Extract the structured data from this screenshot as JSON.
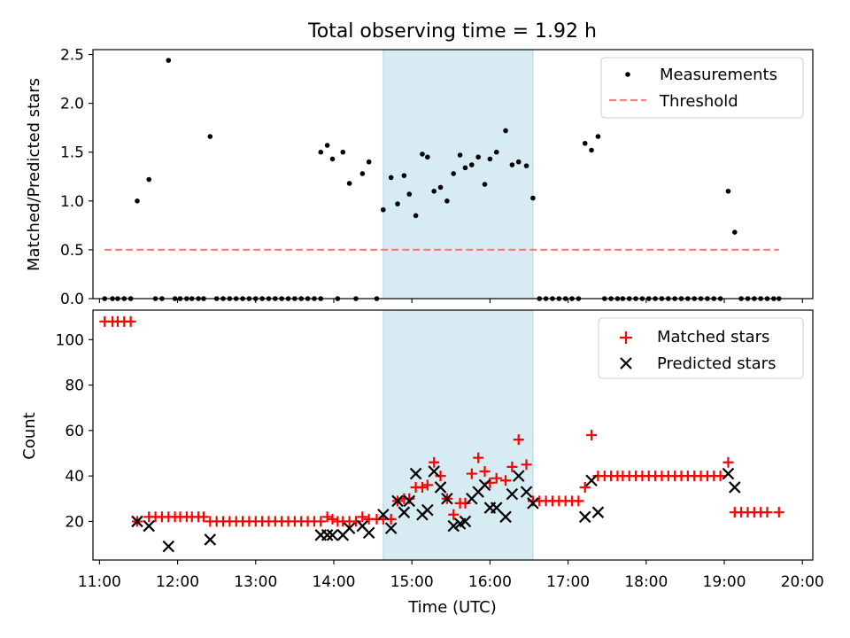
{
  "figure": {
    "title": "Total observing time = 1.92 h",
    "colors": {
      "highlight": "#add8e6",
      "threshold": "#ff7f7f",
      "measurement": "#000000",
      "matched": "#ff0000",
      "predicted": "#000000"
    }
  },
  "chart_data": [
    {
      "type": "scatter",
      "panel": "top",
      "ylabel": "Matched/Predicted stars",
      "xlim": [
        "10:55",
        "20:08"
      ],
      "ylim": [
        0,
        2.55
      ],
      "yticks": [
        "0.0",
        "0.5",
        "1.0",
        "1.5",
        "2.0",
        "2.5"
      ],
      "highlight_span": [
        "14:38",
        "16:33"
      ],
      "legend": {
        "position": "top-right",
        "entries": [
          "Measurements",
          "Threshold"
        ]
      },
      "threshold": {
        "name": "Threshold",
        "y": 0.5,
        "x_range": [
          "11:04",
          "19:42"
        ]
      },
      "series": [
        {
          "name": "Measurements",
          "points": [
            [
              "11:04",
              0
            ],
            [
              "11:10",
              0
            ],
            [
              "11:14",
              0
            ],
            [
              "11:19",
              0
            ],
            [
              "11:24",
              0
            ],
            [
              "11:29",
              1.0
            ],
            [
              "11:38",
              1.22
            ],
            [
              "11:43",
              0
            ],
            [
              "11:48",
              0
            ],
            [
              "11:53",
              2.44
            ],
            [
              "11:58",
              0
            ],
            [
              "12:02",
              0
            ],
            [
              "12:07",
              0
            ],
            [
              "12:11",
              0
            ],
            [
              "12:16",
              0
            ],
            [
              "12:20",
              0
            ],
            [
              "12:25",
              1.66
            ],
            [
              "12:30",
              0
            ],
            [
              "12:35",
              0
            ],
            [
              "12:40",
              0
            ],
            [
              "12:45",
              0
            ],
            [
              "12:50",
              0
            ],
            [
              "12:55",
              0
            ],
            [
              "13:00",
              0
            ],
            [
              "13:05",
              0
            ],
            [
              "13:10",
              0
            ],
            [
              "13:15",
              0
            ],
            [
              "13:20",
              0
            ],
            [
              "13:25",
              0
            ],
            [
              "13:30",
              0
            ],
            [
              "13:35",
              0
            ],
            [
              "13:40",
              0
            ],
            [
              "13:45",
              0
            ],
            [
              "13:50",
              0
            ],
            [
              "13:50",
              1.5
            ],
            [
              "13:55",
              1.57
            ],
            [
              "13:59",
              1.43
            ],
            [
              "14:03",
              0
            ],
            [
              "14:07",
              1.5
            ],
            [
              "14:12",
              1.18
            ],
            [
              "14:17",
              0
            ],
            [
              "14:22",
              1.28
            ],
            [
              "14:27",
              1.4
            ],
            [
              "14:33",
              0
            ],
            [
              "14:38",
              0.91
            ],
            [
              "14:44",
              1.24
            ],
            [
              "14:49",
              0.97
            ],
            [
              "14:54",
              1.26
            ],
            [
              "14:58",
              1.07
            ],
            [
              "15:03",
              0.85
            ],
            [
              "15:08",
              1.48
            ],
            [
              "15:12",
              1.45
            ],
            [
              "15:17",
              1.1
            ],
            [
              "15:22",
              1.14
            ],
            [
              "15:27",
              1.0
            ],
            [
              "15:32",
              1.28
            ],
            [
              "15:37",
              1.47
            ],
            [
              "15:41",
              1.34
            ],
            [
              "15:46",
              1.37
            ],
            [
              "15:51",
              1.45
            ],
            [
              "15:56",
              1.17
            ],
            [
              "16:00",
              1.43
            ],
            [
              "16:05",
              1.5
            ],
            [
              "16:12",
              1.72
            ],
            [
              "16:17",
              1.37
            ],
            [
              "16:22",
              1.4
            ],
            [
              "16:28",
              1.36
            ],
            [
              "16:33",
              1.03
            ],
            [
              "16:38",
              0
            ],
            [
              "16:43",
              0
            ],
            [
              "16:48",
              0
            ],
            [
              "16:53",
              0
            ],
            [
              "16:58",
              0
            ],
            [
              "17:03",
              0
            ],
            [
              "17:08",
              0
            ],
            [
              "17:13",
              1.59
            ],
            [
              "17:18",
              1.52
            ],
            [
              "17:23",
              1.66
            ],
            [
              "17:28",
              0
            ],
            [
              "17:33",
              0
            ],
            [
              "17:38",
              0
            ],
            [
              "17:42",
              0
            ],
            [
              "17:47",
              0
            ],
            [
              "17:52",
              0
            ],
            [
              "17:57",
              0
            ],
            [
              "18:02",
              0
            ],
            [
              "18:07",
              0
            ],
            [
              "18:12",
              0
            ],
            [
              "18:17",
              0
            ],
            [
              "18:22",
              0
            ],
            [
              "18:27",
              0
            ],
            [
              "18:32",
              0
            ],
            [
              "18:37",
              0
            ],
            [
              "18:42",
              0
            ],
            [
              "18:47",
              0
            ],
            [
              "18:52",
              0
            ],
            [
              "18:57",
              0
            ],
            [
              "19:03",
              1.1
            ],
            [
              "19:08",
              0.68
            ],
            [
              "19:13",
              0
            ],
            [
              "19:18",
              0
            ],
            [
              "19:23",
              0
            ],
            [
              "19:28",
              0
            ],
            [
              "19:33",
              0
            ],
            [
              "19:38",
              0
            ],
            [
              "19:42",
              0
            ]
          ]
        }
      ]
    },
    {
      "type": "scatter",
      "panel": "bottom",
      "xlabel": "Time (UTC)",
      "ylabel": "Count",
      "xlim": [
        "10:55",
        "20:08"
      ],
      "ylim": [
        3,
        113
      ],
      "xticks": [
        "11:00",
        "12:00",
        "13:00",
        "14:00",
        "15:00",
        "16:00",
        "17:00",
        "18:00",
        "19:00",
        "20:00"
      ],
      "yticks": [
        "20",
        "40",
        "60",
        "80",
        "100"
      ],
      "highlight_span": [
        "14:38",
        "16:33"
      ],
      "legend": {
        "position": "top-right",
        "entries": [
          "Matched stars",
          "Predicted stars"
        ]
      },
      "series": [
        {
          "name": "Matched stars",
          "marker": "+",
          "points": [
            [
              "11:04",
              108
            ],
            [
              "11:10",
              108
            ],
            [
              "11:14",
              108
            ],
            [
              "11:19",
              108
            ],
            [
              "11:24",
              108
            ],
            [
              "11:29",
              20
            ],
            [
              "11:38",
              22
            ],
            [
              "11:43",
              22
            ],
            [
              "11:48",
              22
            ],
            [
              "11:53",
              22
            ],
            [
              "11:58",
              22
            ],
            [
              "12:02",
              22
            ],
            [
              "12:07",
              22
            ],
            [
              "12:11",
              22
            ],
            [
              "12:16",
              22
            ],
            [
              "12:20",
              22
            ],
            [
              "12:25",
              20
            ],
            [
              "12:30",
              20
            ],
            [
              "12:35",
              20
            ],
            [
              "12:40",
              20
            ],
            [
              "12:45",
              20
            ],
            [
              "12:50",
              20
            ],
            [
              "12:55",
              20
            ],
            [
              "13:00",
              20
            ],
            [
              "13:05",
              20
            ],
            [
              "13:10",
              20
            ],
            [
              "13:15",
              20
            ],
            [
              "13:20",
              20
            ],
            [
              "13:25",
              20
            ],
            [
              "13:30",
              20
            ],
            [
              "13:35",
              20
            ],
            [
              "13:40",
              20
            ],
            [
              "13:45",
              20
            ],
            [
              "13:50",
              20
            ],
            [
              "13:55",
              22
            ],
            [
              "13:59",
              21
            ],
            [
              "14:03",
              20
            ],
            [
              "14:07",
              20
            ],
            [
              "14:12",
              20
            ],
            [
              "14:17",
              20
            ],
            [
              "14:22",
              22
            ],
            [
              "14:27",
              21
            ],
            [
              "14:33",
              21
            ],
            [
              "14:38",
              21
            ],
            [
              "14:44",
              21
            ],
            [
              "14:49",
              29
            ],
            [
              "14:54",
              30
            ],
            [
              "14:58",
              30
            ],
            [
              "15:03",
              35
            ],
            [
              "15:08",
              35
            ],
            [
              "15:12",
              36
            ],
            [
              "15:17",
              46
            ],
            [
              "15:22",
              40
            ],
            [
              "15:27",
              30
            ],
            [
              "15:32",
              23
            ],
            [
              "15:37",
              28
            ],
            [
              "15:41",
              28
            ],
            [
              "15:46",
              41
            ],
            [
              "15:51",
              48
            ],
            [
              "15:56",
              42
            ],
            [
              "16:00",
              37
            ],
            [
              "16:05",
              39
            ],
            [
              "16:12",
              38
            ],
            [
              "16:17",
              44
            ],
            [
              "16:22",
              56
            ],
            [
              "16:28",
              45
            ],
            [
              "16:33",
              29
            ],
            [
              "16:38",
              29
            ],
            [
              "16:43",
              29
            ],
            [
              "16:48",
              29
            ],
            [
              "16:53",
              29
            ],
            [
              "16:58",
              29
            ],
            [
              "17:03",
              29
            ],
            [
              "17:08",
              29
            ],
            [
              "17:13",
              35
            ],
            [
              "17:18",
              58
            ],
            [
              "17:23",
              40
            ],
            [
              "17:28",
              40
            ],
            [
              "17:33",
              40
            ],
            [
              "17:38",
              40
            ],
            [
              "17:42",
              40
            ],
            [
              "17:47",
              40
            ],
            [
              "17:52",
              40
            ],
            [
              "17:57",
              40
            ],
            [
              "18:02",
              40
            ],
            [
              "18:07",
              40
            ],
            [
              "18:12",
              40
            ],
            [
              "18:17",
              40
            ],
            [
              "18:22",
              40
            ],
            [
              "18:27",
              40
            ],
            [
              "18:32",
              40
            ],
            [
              "18:37",
              40
            ],
            [
              "18:42",
              40
            ],
            [
              "18:47",
              40
            ],
            [
              "18:52",
              40
            ],
            [
              "18:57",
              40
            ],
            [
              "19:03",
              46
            ],
            [
              "19:08",
              24
            ],
            [
              "19:13",
              24
            ],
            [
              "19:18",
              24
            ],
            [
              "19:23",
              24
            ],
            [
              "19:28",
              24
            ],
            [
              "19:33",
              24
            ],
            [
              "19:42",
              24
            ]
          ]
        },
        {
          "name": "Predicted stars",
          "marker": "x",
          "points": [
            [
              "11:29",
              20
            ],
            [
              "11:38",
              18
            ],
            [
              "11:53",
              9
            ],
            [
              "12:25",
              12
            ],
            [
              "13:50",
              14
            ],
            [
              "13:55",
              14
            ],
            [
              "13:59",
              14
            ],
            [
              "14:07",
              14
            ],
            [
              "14:12",
              17
            ],
            [
              "14:22",
              18
            ],
            [
              "14:27",
              15
            ],
            [
              "14:38",
              23
            ],
            [
              "14:44",
              17
            ],
            [
              "14:49",
              29
            ],
            [
              "14:54",
              24
            ],
            [
              "14:58",
              29
            ],
            [
              "15:03",
              41
            ],
            [
              "15:08",
              23
            ],
            [
              "15:12",
              25
            ],
            [
              "15:17",
              42
            ],
            [
              "15:22",
              35
            ],
            [
              "15:27",
              30
            ],
            [
              "15:32",
              18
            ],
            [
              "15:37",
              19
            ],
            [
              "15:41",
              20
            ],
            [
              "15:46",
              30
            ],
            [
              "15:51",
              33
            ],
            [
              "15:56",
              36
            ],
            [
              "16:00",
              26
            ],
            [
              "16:05",
              26
            ],
            [
              "16:12",
              22
            ],
            [
              "16:17",
              32
            ],
            [
              "16:22",
              40
            ],
            [
              "16:28",
              33
            ],
            [
              "16:33",
              28
            ],
            [
              "17:13",
              22
            ],
            [
              "17:18",
              38
            ],
            [
              "17:23",
              24
            ],
            [
              "19:03",
              41
            ],
            [
              "19:08",
              35
            ]
          ]
        }
      ]
    }
  ]
}
